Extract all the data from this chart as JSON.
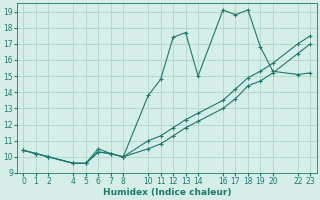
{
  "xlabel": "Humidex (Indice chaleur)",
  "ylabel": "",
  "bg_color": "#d6eee8",
  "line_color": "#1a7a6e",
  "grid_color": "#b0d4cc",
  "xticks": [
    0,
    1,
    2,
    4,
    5,
    6,
    7,
    8,
    10,
    11,
    12,
    13,
    14,
    16,
    17,
    18,
    19,
    20,
    22,
    23
  ],
  "yticks": [
    9,
    10,
    11,
    12,
    13,
    14,
    15,
    16,
    17,
    18,
    19
  ],
  "xlim": [
    -0.5,
    23.5
  ],
  "ylim": [
    9,
    19.5
  ],
  "line1_x": [
    0,
    1,
    2,
    4,
    5,
    6,
    7,
    8,
    10,
    11,
    12,
    13,
    14,
    16,
    17,
    18,
    19,
    20,
    22,
    23
  ],
  "line1_y": [
    10.4,
    10.2,
    10.0,
    9.6,
    9.6,
    10.5,
    10.2,
    10.0,
    13.8,
    14.8,
    17.4,
    17.7,
    15.0,
    19.1,
    18.8,
    19.1,
    16.8,
    15.3,
    15.1,
    15.2
  ],
  "line2_x": [
    0,
    1,
    2,
    4,
    5,
    6,
    7,
    8,
    10,
    11,
    12,
    13,
    14,
    16,
    17,
    18,
    19,
    20,
    22,
    23
  ],
  "line2_y": [
    10.4,
    10.2,
    10.0,
    9.6,
    9.6,
    10.3,
    10.2,
    10.0,
    11.0,
    11.3,
    11.8,
    12.3,
    12.7,
    13.5,
    14.2,
    14.9,
    15.3,
    15.8,
    17.0,
    17.5
  ],
  "line3_x": [
    0,
    1,
    2,
    4,
    5,
    6,
    7,
    8,
    10,
    11,
    12,
    13,
    14,
    16,
    17,
    18,
    19,
    20,
    22,
    23
  ],
  "line3_y": [
    10.4,
    10.2,
    10.0,
    9.6,
    9.6,
    10.3,
    10.2,
    10.0,
    10.5,
    10.8,
    11.3,
    11.8,
    12.2,
    13.0,
    13.6,
    14.4,
    14.7,
    15.2,
    16.4,
    17.0
  ]
}
